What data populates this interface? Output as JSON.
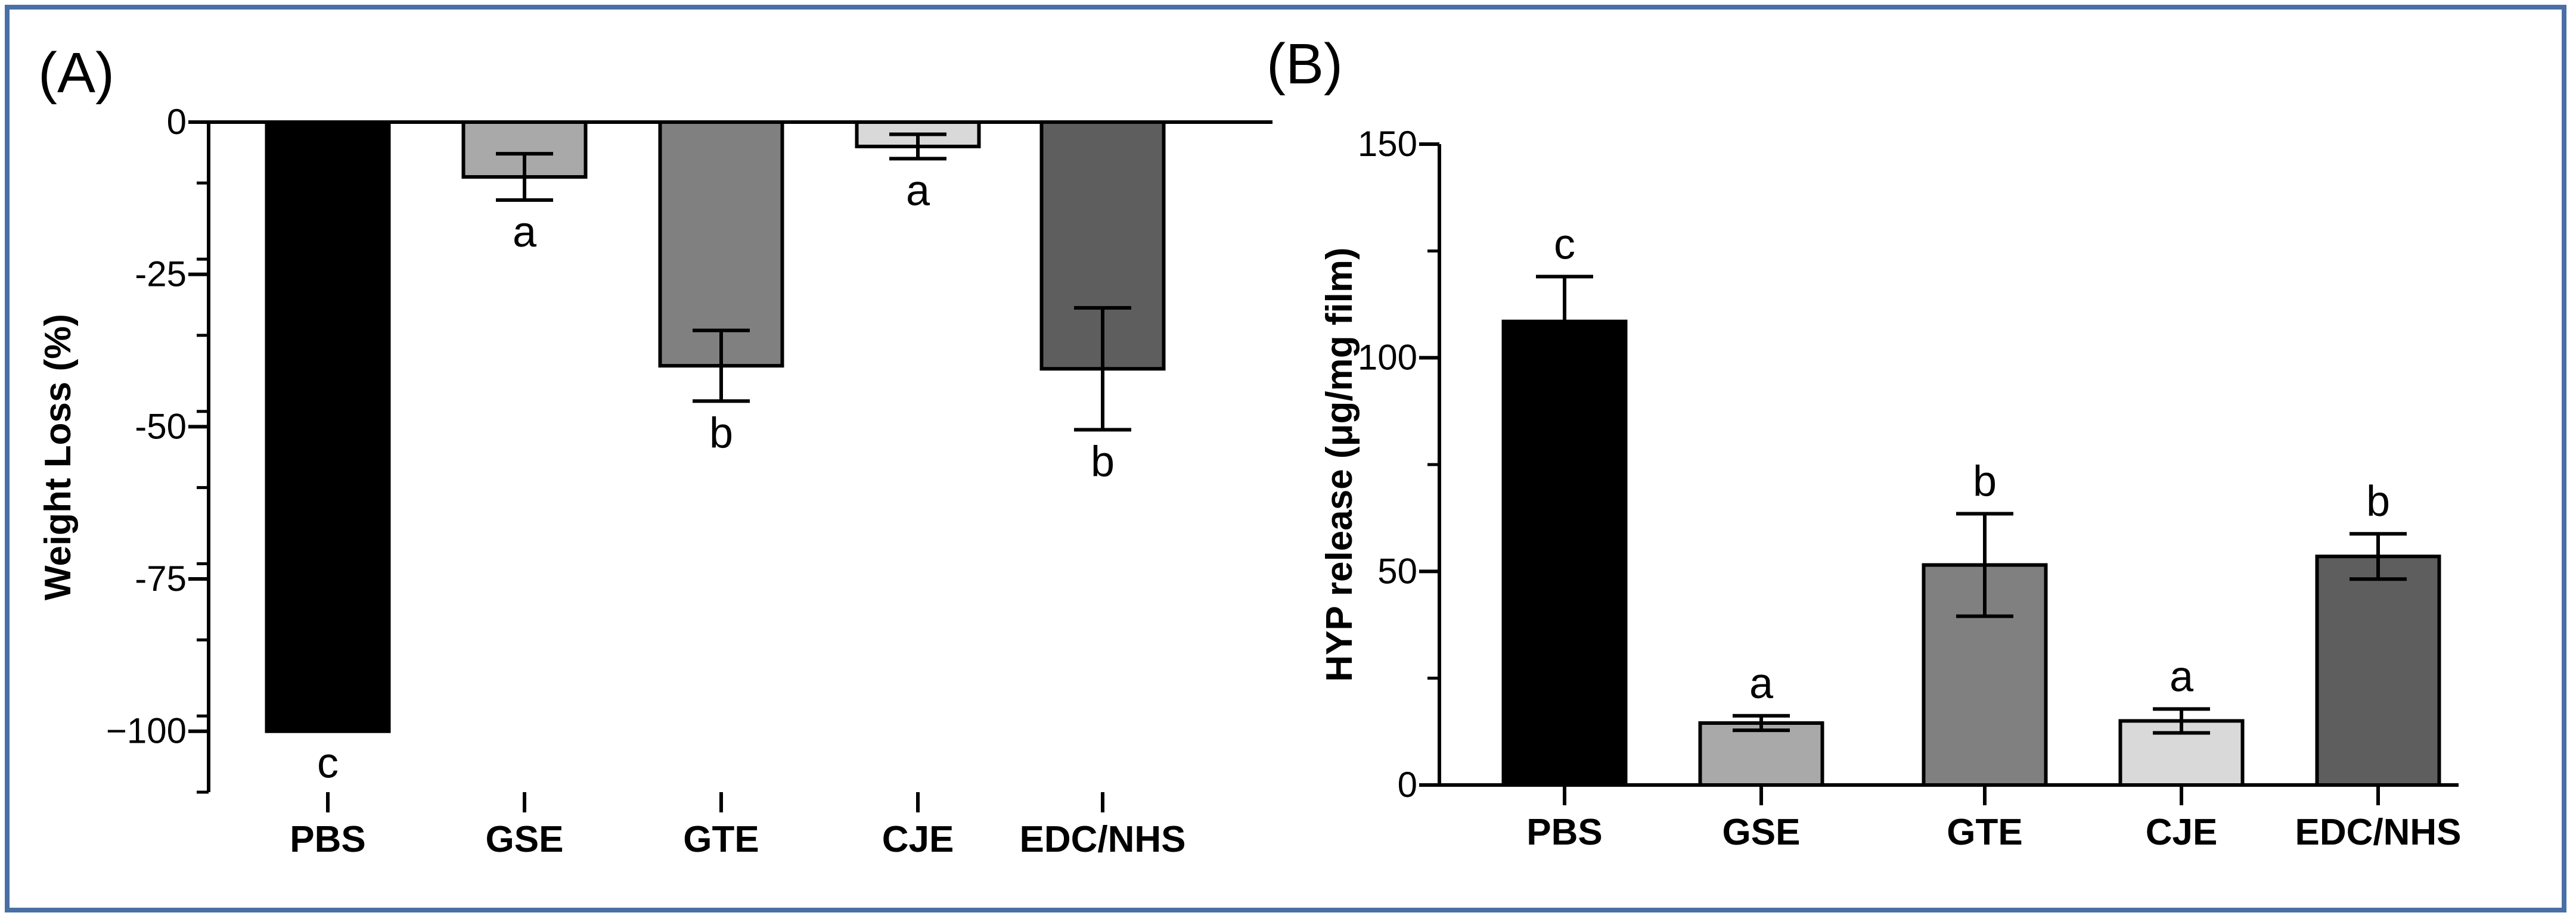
{
  "chart_data": [
    {
      "type": "bar",
      "panel_label": "(A)",
      "title": "",
      "xlabel": "",
      "ylabel": "Weight Loss (%)",
      "categories": [
        "PBS",
        "GSE",
        "GTE",
        "CJE",
        "EDC/NHS"
      ],
      "values": [
        -100,
        -9,
        -40,
        -4,
        -40.5
      ],
      "errors": [
        0,
        3.8,
        5.8,
        2,
        10
      ],
      "letters": [
        "c",
        "a",
        "b",
        "a",
        "b"
      ],
      "colors": [
        "#000000",
        "#a9a9a9",
        "#808080",
        "#d9d9d9",
        "#5e5e5e"
      ],
      "ylim": [
        -110,
        0
      ],
      "yticks": [
        0,
        -25,
        -50,
        -75,
        -100
      ],
      "ytick_labels": [
        "0",
        "-25",
        "-50",
        "-75",
        "−100"
      ],
      "grid": false
    },
    {
      "type": "bar",
      "panel_label": "(B)",
      "title": "",
      "xlabel": "",
      "ylabel": "HYP release (μg/mg film)",
      "categories": [
        "PBS",
        "GSE",
        "GTE",
        "CJE",
        "EDC/NHS"
      ],
      "values": [
        108.5,
        14.5,
        51.5,
        15,
        53.5
      ],
      "errors": [
        10.5,
        1.7,
        12,
        2.8,
        5.3
      ],
      "letters": [
        "c",
        "a",
        "b",
        "a",
        "b"
      ],
      "colors": [
        "#000000",
        "#a9a9a9",
        "#808080",
        "#d9d9d9",
        "#5e5e5e"
      ],
      "ylim": [
        0,
        150
      ],
      "yticks": [
        0,
        50,
        100,
        150
      ],
      "ytick_labels": [
        "0",
        "50",
        "100",
        "150"
      ],
      "grid": false
    }
  ]
}
